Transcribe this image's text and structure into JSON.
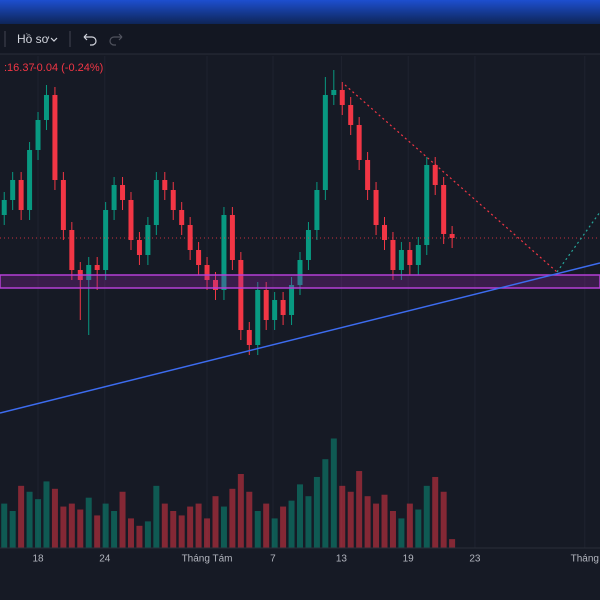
{
  "toolbar": {
    "profile": "Hồ sơ"
  },
  "chart_data": {
    "type": "candlestick",
    "legend": {
      "close": ":16.37",
      "change": "-0.04 (-0.24%)"
    },
    "up_color": "#089981",
    "down_color": "#f23645",
    "xlim": [
      0,
      71
    ],
    "xticks": [
      {
        "value": 4.5,
        "label": "18"
      },
      {
        "value": 12.4,
        "label": "24"
      },
      {
        "value": 24.5,
        "label": "Tháng Tám"
      },
      {
        "value": 32.3,
        "label": "7"
      },
      {
        "value": 40.4,
        "label": "13"
      },
      {
        "value": 48.3,
        "label": "19"
      },
      {
        "value": 56.2,
        "label": "23"
      },
      {
        "value": 69.2,
        "label": "Tháng"
      }
    ],
    "ylim": [
      13.35,
      18.75
    ],
    "open": [
      16.6,
      16.75,
      16.95,
      16.65,
      17.25,
      17.55,
      17.8,
      16.95,
      16.45,
      16.05,
      15.95,
      16.1,
      16.05,
      16.65,
      16.9,
      16.75,
      16.35,
      16.2,
      16.5,
      16.95,
      16.85,
      16.65,
      16.5,
      16.25,
      16.1,
      15.95,
      15.85,
      16.6,
      16.15,
      15.45,
      15.3,
      15.85,
      15.55,
      15.75,
      15.6,
      15.9,
      16.15,
      16.45,
      16.85,
      17.8,
      17.85,
      17.7,
      17.5,
      17.15,
      16.85,
      16.5,
      16.35,
      16.05,
      16.25,
      16.1,
      16.3,
      17.1,
      16.9,
      16.41
    ],
    "high": [
      16.83,
      17.03,
      17.03,
      17.33,
      17.63,
      17.9,
      17.88,
      17.03,
      16.53,
      16.13,
      16.18,
      16.18,
      16.73,
      16.98,
      16.98,
      16.83,
      16.43,
      16.58,
      17.03,
      17.03,
      16.93,
      16.73,
      16.58,
      16.33,
      16.18,
      16.03,
      16.68,
      16.68,
      16.23,
      15.53,
      15.93,
      15.93,
      15.83,
      15.83,
      15.98,
      16.23,
      16.53,
      16.93,
      17.98,
      18.05,
      17.93,
      17.78,
      17.58,
      17.23,
      16.93,
      16.58,
      16.43,
      16.33,
      16.33,
      16.38,
      17.18,
      17.18,
      16.98,
      16.49
    ],
    "low": [
      16.5,
      16.65,
      16.55,
      16.55,
      17.15,
      17.45,
      16.85,
      16.35,
      15.95,
      15.55,
      15.4,
      15.85,
      15.95,
      16.55,
      16.65,
      16.25,
      16.1,
      16.1,
      16.4,
      16.75,
      16.55,
      16.4,
      16.15,
      16.0,
      15.85,
      15.75,
      15.75,
      16.05,
      15.35,
      15.2,
      15.2,
      15.45,
      15.45,
      15.5,
      15.5,
      15.8,
      16.05,
      16.35,
      16.75,
      17.7,
      17.6,
      17.4,
      17.05,
      16.75,
      16.4,
      16.25,
      15.95,
      15.95,
      16.0,
      16.0,
      16.2,
      16.8,
      16.31,
      16.27
    ],
    "close": [
      16.75,
      16.95,
      16.65,
      17.25,
      17.55,
      17.8,
      16.95,
      16.45,
      16.05,
      15.95,
      16.1,
      16.05,
      16.65,
      16.9,
      16.75,
      16.35,
      16.2,
      16.5,
      16.95,
      16.85,
      16.65,
      16.5,
      16.25,
      16.1,
      15.95,
      15.85,
      16.6,
      16.15,
      15.45,
      15.3,
      15.85,
      15.55,
      15.75,
      15.6,
      15.9,
      16.15,
      16.45,
      16.85,
      17.8,
      17.85,
      17.7,
      17.5,
      17.15,
      16.85,
      16.5,
      16.35,
      16.05,
      16.25,
      16.1,
      16.3,
      17.1,
      16.9,
      16.41,
      16.37
    ],
    "volume": [
      300,
      250,
      420,
      380,
      330,
      450,
      400,
      280,
      300,
      260,
      340,
      220,
      300,
      250,
      380,
      200,
      150,
      180,
      420,
      300,
      250,
      220,
      280,
      300,
      200,
      350,
      280,
      400,
      500,
      380,
      250,
      300,
      200,
      280,
      320,
      430,
      350,
      480,
      600,
      740,
      420,
      380,
      520,
      350,
      300,
      360,
      250,
      200,
      300,
      260,
      420,
      480,
      380,
      60
    ],
    "volume_ylim": [
      0,
      1000
    ]
  }
}
